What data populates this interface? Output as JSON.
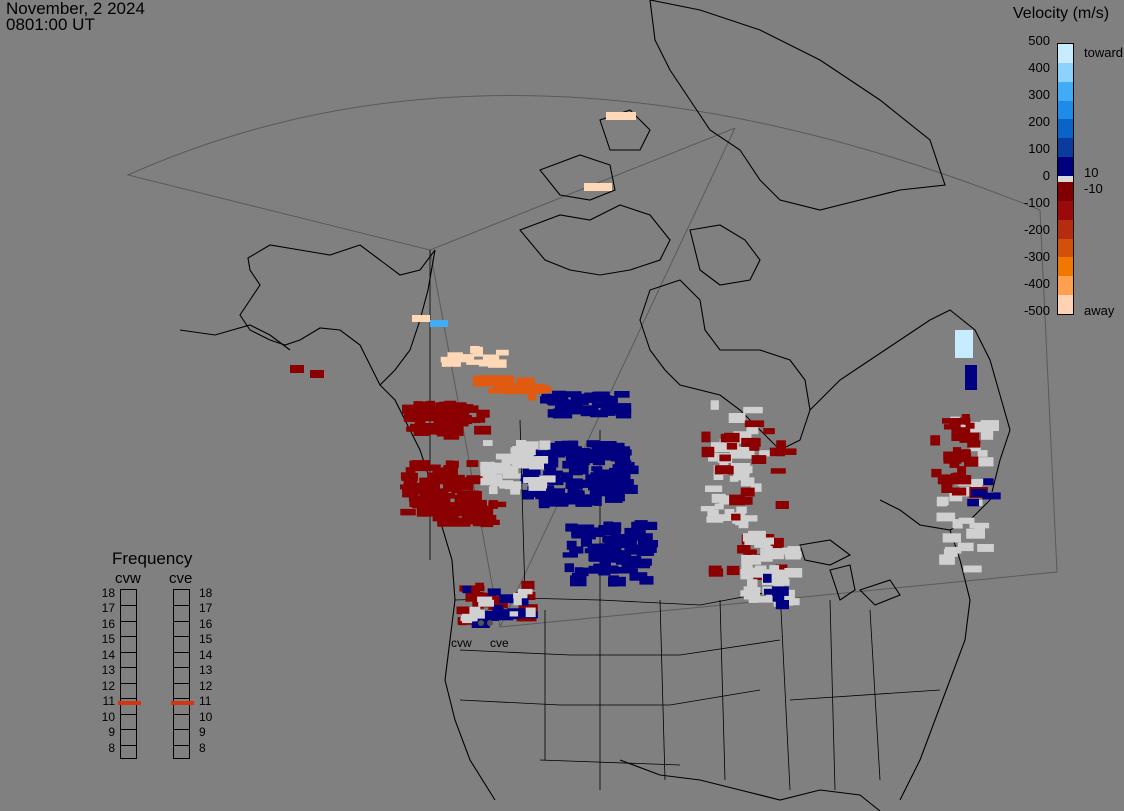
{
  "header": {
    "date": "November, 2 2024",
    "time": "0801:00 UT"
  },
  "velocity_scale": {
    "title": "Velocity (m/s)",
    "ticks": [
      "500",
      "400",
      "300",
      "200",
      "100",
      "0",
      "-100",
      "-200",
      "-300",
      "-400",
      "-500"
    ],
    "label_top": "toward",
    "label_bottom": "away",
    "threshold_pos": "10",
    "threshold_neg": "-10",
    "colors": [
      "#c8ecff",
      "#8cd2ff",
      "#41acf5",
      "#1e8ce6",
      "#0a64c8",
      "#0a3c9b",
      "#00007f",
      "#7f0000",
      "#9b0a0a",
      "#b42d0f",
      "#d2500a",
      "#f07800",
      "#ffa050",
      "#ffd2b4"
    ]
  },
  "frequency": {
    "title": "Frequency",
    "radars": [
      {
        "name": "cvw",
        "current_mhz": 10.8
      },
      {
        "name": "cve",
        "current_mhz": 10.8
      }
    ],
    "levels": [
      "18",
      "17",
      "16",
      "15",
      "14",
      "13",
      "12",
      "11",
      "10",
      "9",
      "8"
    ],
    "marker_color": "#d2350f"
  },
  "sites": [
    {
      "name": "cvw"
    },
    {
      "name": "cve"
    }
  ]
}
